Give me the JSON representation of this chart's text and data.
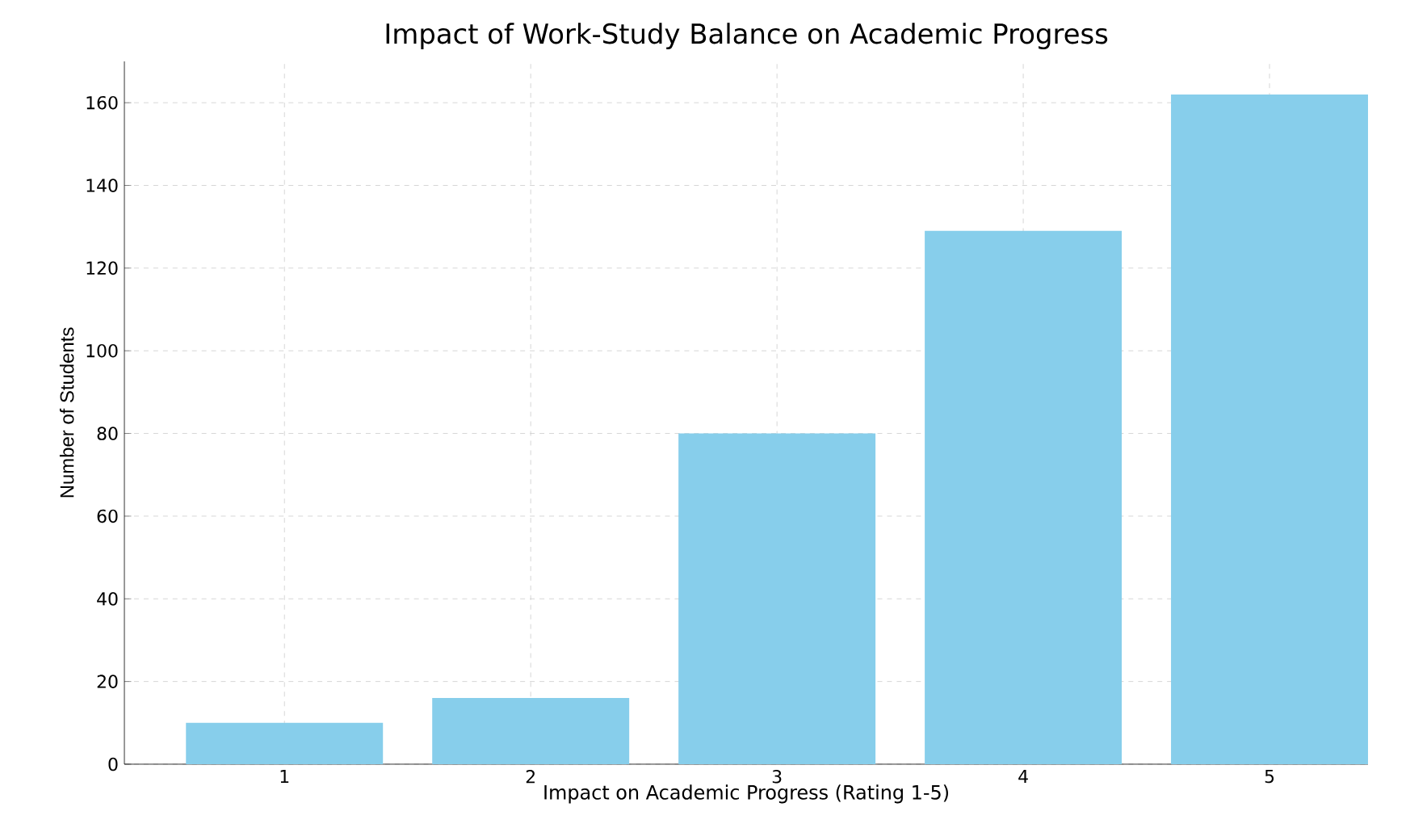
{
  "chart_data": {
    "type": "bar",
    "title": "Impact of Work-Study Balance on Academic Progress",
    "xlabel": "Impact on Academic Progress (Rating 1-5)",
    "ylabel": "Number of Students",
    "categories": [
      "1",
      "2",
      "3",
      "4",
      "5"
    ],
    "values": [
      10,
      16,
      80,
      129,
      162
    ],
    "color": "#87ceeb",
    "ylim": [
      0,
      170
    ],
    "yticks": [
      0,
      20,
      40,
      60,
      80,
      100,
      120,
      140,
      160
    ],
    "grid": true
  }
}
